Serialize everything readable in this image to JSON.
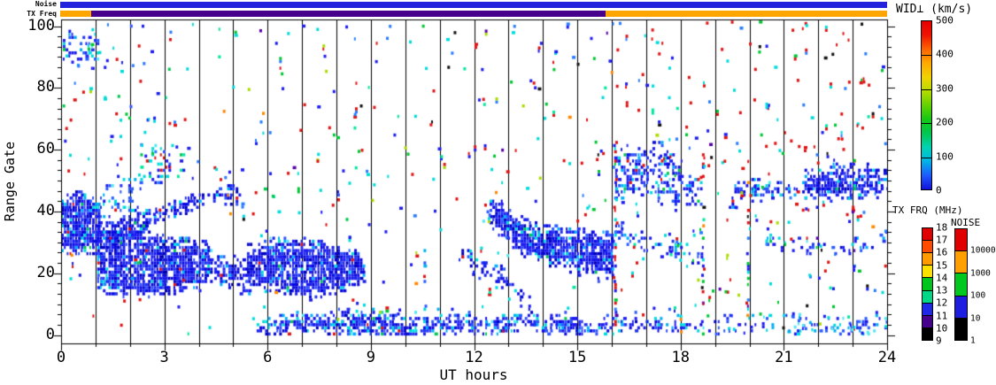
{
  "figure": {
    "top_annotations": {
      "noise_label": "Noise",
      "txfreq_label": "TX Freq",
      "noise_bar": {
        "segments": [
          {
            "from_hour": 0,
            "to_hour": 24,
            "color": "#2222dd"
          }
        ]
      },
      "txfreq_bar": {
        "segments": [
          {
            "from_hour": 0,
            "to_hour": 0.9,
            "color": "#ffa500"
          },
          {
            "from_hour": 0.9,
            "to_hour": 15.82,
            "color": "#46008c"
          },
          {
            "from_hour": 15.82,
            "to_hour": 24,
            "color": "#ffa500"
          }
        ]
      }
    },
    "legends": {
      "wid": {
        "title": "WID⊥ (km/s)",
        "ticks": [
          "500",
          "400",
          "300",
          "200",
          "100",
          "0"
        ],
        "gradient_bottom_to_top": [
          "#1212dc",
          "#1e5aff",
          "#00b4e6",
          "#00d2b4",
          "#00c850",
          "#14c814",
          "#64d200",
          "#b4dc00",
          "#f0d200",
          "#ffaa00",
          "#ff6400",
          "#f01400",
          "#e60000"
        ]
      },
      "txfrq": {
        "title": "TX FRQ (MHz)",
        "ticks": [
          "18",
          "17",
          "16",
          "15",
          "14",
          "13",
          "12",
          "11",
          "10",
          "9"
        ],
        "colors_top_to_bottom": [
          "#e10000",
          "#ff4b00",
          "#ff9b00",
          "#ffe100",
          "#00c41e",
          "#00d787",
          "#1e28e6",
          "#46008c",
          "#000000"
        ]
      },
      "noise": {
        "title": "NOISE",
        "ticks": [
          "10000",
          "1000",
          "100",
          "10",
          "1"
        ],
        "colors_top_to_bottom": [
          "#e10000",
          "#ffa000",
          "#00c81e",
          "#1e1ee1",
          "#000000"
        ]
      }
    },
    "axes": {
      "x": {
        "title": "UT hours",
        "tick_labels": [
          "0",
          "3",
          "6",
          "9",
          "12",
          "15",
          "18",
          "21",
          "24"
        ],
        "range": [
          0,
          24
        ],
        "major_step": 3,
        "minor_step": 1
      },
      "y": {
        "title": "Range Gate",
        "tick_labels": [
          "100",
          "80",
          "60",
          "40",
          "20",
          "0"
        ],
        "range": [
          0,
          100
        ],
        "major_step": 20
      }
    }
  },
  "chart_data": {
    "type": "heatmap",
    "title": "WID⊥ (km/s)",
    "xlabel": "UT hours",
    "ylabel": "Range Gate",
    "xlim": [
      0,
      24
    ],
    "ylim": [
      0,
      100
    ],
    "grid": "vertical line at every hour",
    "colorbar": {
      "label": "WID⊥ (km/s)",
      "range": [
        0,
        500
      ]
    },
    "hour_lines": [
      1,
      2,
      3,
      4,
      5,
      6,
      7,
      8,
      9,
      10,
      11,
      12,
      13,
      14,
      15,
      16,
      17,
      18,
      19,
      20,
      21,
      22,
      23
    ],
    "palettes": {
      "dense": {
        "colors": [
          "#0a0ae0",
          "#1c1cf0",
          "#2233f2",
          "#0000be",
          "#3352ff",
          "#00b0ff",
          "#00dcdc",
          "#00c850",
          "#e01414"
        ],
        "weights": [
          30,
          25,
          18,
          10,
          8,
          4,
          3,
          1,
          1
        ]
      },
      "bandBlue": {
        "colors": [
          "#0a0ae0",
          "#1c1cf0",
          "#2233f2",
          "#0000be",
          "#3352ff",
          "#00b0ff",
          "#00dcdc",
          "#00c850",
          "#e01414"
        ],
        "weights": [
          26,
          22,
          16,
          8,
          10,
          7,
          7,
          2,
          2
        ]
      },
      "patchBlue": {
        "colors": [
          "#1c1cf0",
          "#2233f2",
          "#2a5cff",
          "#0a0ae0",
          "#00b0ff",
          "#00dcdc",
          "#e01414",
          "#00c850"
        ],
        "weights": [
          28,
          20,
          14,
          14,
          10,
          8,
          4,
          2
        ]
      },
      "blueCyan": {
        "colors": [
          "#1c1cf0",
          "#2a5cff",
          "#00b0f0",
          "#00dcdc",
          "#2233f2",
          "#55e8f0"
        ],
        "weights": [
          30,
          20,
          15,
          15,
          12,
          8
        ]
      },
      "mixedCool": {
        "colors": [
          "#1c1cf0",
          "#00dcdc",
          "#e01414",
          "#00c850",
          "#2a7cff",
          "#00e8a0",
          "#3352ff"
        ],
        "weights": [
          25,
          20,
          15,
          12,
          12,
          8,
          8
        ]
      },
      "mixed": {
        "colors": [
          "#e01414",
          "#00dcdc",
          "#1c1cf0",
          "#2a7cff",
          "#00c832",
          "#00e8a0",
          "#111111",
          "#aadd00",
          "#ff8800",
          "#5500aa"
        ],
        "weights": [
          27,
          18,
          20,
          11,
          9,
          5,
          3,
          3,
          2,
          2
        ]
      },
      "redHeavy": {
        "colors": [
          "#e01414",
          "#00dcdc",
          "#1c1cf0",
          "#2a7cff",
          "#00c832",
          "#111111",
          "#00e8a0"
        ],
        "weights": [
          42,
          16,
          18,
          9,
          7,
          4,
          4
        ]
      }
    },
    "features": [
      {
        "h": [
          0,
          1.08
        ],
        "top": [
          [
            0,
            44
          ],
          [
            0.55,
            46
          ],
          [
            1.08,
            43
          ]
        ],
        "bot": [
          [
            0,
            26
          ],
          [
            0.5,
            24
          ],
          [
            1.08,
            25
          ]
        ],
        "fill": 0.92
      },
      {
        "h": [
          1.05,
          4.4
        ],
        "top": [
          [
            1.05,
            35
          ],
          [
            2,
            35
          ],
          [
            3.2,
            33
          ],
          [
            4.4,
            31
          ]
        ],
        "bot": [
          [
            1.05,
            14
          ],
          [
            2.2,
            14
          ],
          [
            3.5,
            16
          ],
          [
            4.4,
            18
          ]
        ],
        "fill": 0.9
      },
      {
        "h": [
          1.3,
          5.2
        ],
        "top": [
          [
            1.3,
            33
          ],
          [
            2.5,
            40
          ],
          [
            4,
            46
          ],
          [
            5.2,
            49
          ]
        ],
        "bot": [
          [
            1.3,
            27
          ],
          [
            2.5,
            33
          ],
          [
            4,
            40
          ],
          [
            5.2,
            43
          ]
        ],
        "fill": 0.75
      },
      {
        "h": [
          4.45,
          5.5
        ],
        "top": [
          [
            4.45,
            24
          ],
          [
            5.5,
            25
          ]
        ],
        "bot": [
          [
            4.45,
            16
          ],
          [
            5.5,
            15
          ]
        ],
        "fill": 0.65
      },
      {
        "h": [
          5.4,
          8.8
        ],
        "top": [
          [
            5.4,
            29
          ],
          [
            6,
            31
          ],
          [
            7.2,
            32
          ],
          [
            8.1,
            30
          ],
          [
            8.8,
            26
          ]
        ],
        "bot": [
          [
            5.4,
            17
          ],
          [
            6,
            14
          ],
          [
            7,
            13
          ],
          [
            8,
            16
          ],
          [
            8.8,
            18
          ]
        ],
        "fill": 0.93
      },
      {
        "h": [
          5.6,
          19.0
        ],
        "top": [
          [
            5.6,
            3
          ],
          [
            7,
            4.2
          ],
          [
            12,
            4
          ],
          [
            19,
            4
          ]
        ],
        "bot": [
          [
            5.6,
            0
          ],
          [
            19,
            0
          ]
        ],
        "fill": 0.82,
        "pal": "bandBlue"
      },
      {
        "h": [
          19.0,
          24
        ],
        "top": [
          [
            19,
            3.5
          ],
          [
            24,
            3.5
          ]
        ],
        "bot": [
          [
            19,
            0
          ],
          [
            24,
            0
          ]
        ],
        "fill": 0.3,
        "pal": "blueCyan"
      },
      {
        "h": [
          11.55,
          12.85
        ],
        "top": [
          [
            11.55,
            28
          ],
          [
            12.85,
            17
          ]
        ],
        "bot": [
          [
            11.55,
            24
          ],
          [
            12.85,
            13
          ]
        ],
        "fill": 0.5
      },
      {
        "h": [
          12.1,
          13.6
        ],
        "top": [
          [
            12.1,
            26
          ],
          [
            13.6,
            13
          ]
        ],
        "bot": [
          [
            12.1,
            22
          ],
          [
            13.6,
            8
          ]
        ],
        "fill": 0.45
      },
      {
        "h": [
          12.45,
          16.05
        ],
        "top": [
          [
            12.45,
            43
          ],
          [
            13.2,
            38
          ],
          [
            14,
            36
          ],
          [
            15,
            35
          ],
          [
            16.05,
            34
          ]
        ],
        "bot": [
          [
            12.45,
            36
          ],
          [
            13,
            30
          ],
          [
            13.8,
            26
          ],
          [
            14.6,
            24
          ],
          [
            16.05,
            22
          ]
        ],
        "fill": 0.92
      },
      {
        "h": [
          14.6,
          16.05
        ],
        "top": [
          [
            14.6,
            24
          ],
          [
            16.05,
            22
          ]
        ],
        "bot": [
          [
            14.6,
            20
          ],
          [
            16.05,
            17
          ]
        ],
        "fill": 0.35
      },
      {
        "h": [
          16.1,
          17.05
        ],
        "top": [
          [
            16.1,
            58
          ],
          [
            16.6,
            61
          ],
          [
            17.05,
            58
          ]
        ],
        "bot": [
          [
            16.1,
            44
          ],
          [
            17.05,
            47
          ]
        ],
        "fill": 0.5,
        "pal": "patchBlue"
      },
      {
        "h": [
          17.1,
          18.05
        ],
        "top": [
          [
            17.1,
            62
          ],
          [
            18.05,
            60
          ]
        ],
        "bot": [
          [
            17.1,
            50
          ],
          [
            18.05,
            48
          ]
        ],
        "fill": 0.45,
        "pal": "patchBlue"
      },
      {
        "h": [
          17.25,
          18.6
        ],
        "top": [
          [
            17.25,
            50
          ],
          [
            18.6,
            48
          ]
        ],
        "bot": [
          [
            17.25,
            42
          ],
          [
            18.6,
            40
          ]
        ],
        "fill": 0.4,
        "pal": "patchBlue"
      },
      {
        "h": [
          16.1,
          18.7
        ],
        "top": [
          [
            16.1,
            36
          ],
          [
            17,
            32
          ],
          [
            18,
            30
          ],
          [
            18.7,
            27
          ]
        ],
        "bot": [
          [
            16.1,
            30
          ],
          [
            17,
            27
          ],
          [
            18,
            24
          ],
          [
            18.7,
            21
          ]
        ],
        "fill": 0.38,
        "pal": "patchBlue"
      },
      {
        "h": [
          19.4,
          21.6
        ],
        "top": [
          [
            19.4,
            48
          ],
          [
            20.3,
            50
          ],
          [
            21.6,
            49
          ]
        ],
        "bot": [
          [
            19.4,
            41
          ],
          [
            20.3,
            42
          ],
          [
            21.6,
            43
          ]
        ],
        "fill": 0.5,
        "pal": "patchBlue"
      },
      {
        "h": [
          21.6,
          24
        ],
        "top": [
          [
            21.6,
            52
          ],
          [
            22.3,
            54
          ],
          [
            23.2,
            56
          ],
          [
            24,
            54
          ]
        ],
        "bot": [
          [
            21.6,
            45
          ],
          [
            22.5,
            46
          ],
          [
            24,
            47
          ]
        ],
        "fill": 0.78
      },
      {
        "h": [
          20.5,
          24
        ],
        "top": [
          [
            20.5,
            33
          ],
          [
            21.5,
            30
          ],
          [
            22.5,
            28
          ],
          [
            23.3,
            28
          ],
          [
            24,
            33
          ]
        ],
        "bot": [
          [
            20.5,
            29
          ],
          [
            21.5,
            26
          ],
          [
            22.5,
            24
          ],
          [
            23.3,
            25
          ],
          [
            24,
            29
          ]
        ],
        "fill": 0.35,
        "pal": "patchBlue"
      },
      {
        "h": [
          0.05,
          1.1
        ],
        "top": [
          [
            0.05,
            97
          ],
          [
            0.6,
            98
          ],
          [
            1.1,
            96
          ]
        ],
        "bot": [
          [
            0.05,
            88
          ],
          [
            1.1,
            89
          ]
        ],
        "fill": 0.4,
        "pal": "blueCyan"
      },
      {
        "h": [
          1.05,
          2.35
        ],
        "top": [
          [
            1.05,
            47
          ],
          [
            1.6,
            50
          ],
          [
            2.35,
            48
          ]
        ],
        "bot": [
          [
            1.05,
            37
          ],
          [
            2.35,
            39
          ]
        ],
        "fill": 0.28,
        "pal": "blueCyan"
      },
      {
        "h": [
          2.3,
          3.6
        ],
        "top": [
          [
            2.3,
            58
          ],
          [
            3,
            65
          ],
          [
            3.6,
            62
          ]
        ],
        "bot": [
          [
            2.3,
            49
          ],
          [
            3.6,
            53
          ]
        ],
        "fill": 0.2,
        "pal": "mixedCool"
      },
      {
        "h": [
          6,
          19
        ],
        "top": [
          [
            6,
            6.5
          ],
          [
            19,
            6.5
          ]
        ],
        "bot": [
          [
            6,
            3.5
          ],
          [
            19,
            3.5
          ]
        ],
        "fill": 0.13,
        "pal": "blueCyan"
      }
    ],
    "speckle_regions": [
      {
        "h": [
          0,
          24
        ],
        "g": [
          0,
          101
        ],
        "d": 0.007,
        "pal": "mixed"
      },
      {
        "h": [
          0,
          3.2
        ],
        "g": [
          48,
          100
        ],
        "d": 0.02,
        "pal": "mixedCool"
      },
      {
        "h": [
          3.2,
          9
        ],
        "g": [
          35,
          100
        ],
        "d": 0.009,
        "pal": "mixed"
      },
      {
        "h": [
          9,
          13
        ],
        "g": [
          5,
          100
        ],
        "d": 0.01,
        "pal": "mixed"
      },
      {
        "h": [
          13,
          16
        ],
        "g": [
          35,
          100
        ],
        "d": 0.012,
        "pal": "mixed"
      },
      {
        "h": [
          16,
          24
        ],
        "g": [
          55,
          101
        ],
        "d": 0.022,
        "pal": "redHeavy"
      },
      {
        "h": [
          16,
          24
        ],
        "g": [
          5,
          55
        ],
        "d": 0.018,
        "pal": "mixed"
      },
      {
        "h": [
          19,
          24
        ],
        "g": [
          0,
          6
        ],
        "d": 0.1,
        "pal": "blueCyan"
      },
      {
        "h": [
          5.5,
          9.2
        ],
        "g": [
          30,
          55
        ],
        "d": 0.015,
        "pal": "mixedCool"
      },
      {
        "h": [
          12.2,
          13.8
        ],
        "g": [
          25,
          40
        ],
        "d": 0.03,
        "pal": "blueCyan"
      }
    ],
    "stripes": [
      {
        "h": 16.07,
        "g": [
          2,
          62
        ],
        "d": 0.55,
        "pal": "mixed"
      },
      {
        "h": 18.62,
        "g": [
          0,
          58
        ],
        "d": 0.3,
        "pal": "mixed"
      },
      {
        "h": 19.93,
        "g": [
          0,
          52
        ],
        "d": 0.28,
        "pal": "mixed"
      },
      {
        "h": 21.93,
        "g": [
          20,
          58
        ],
        "d": 0.22,
        "pal": "mixed"
      },
      {
        "h": 23.02,
        "g": [
          22,
          58
        ],
        "d": 0.2,
        "pal": "mixed"
      },
      {
        "h": 10.53,
        "g": [
          0,
          40
        ],
        "d": 0.12,
        "pal": "blueCyan"
      }
    ]
  }
}
